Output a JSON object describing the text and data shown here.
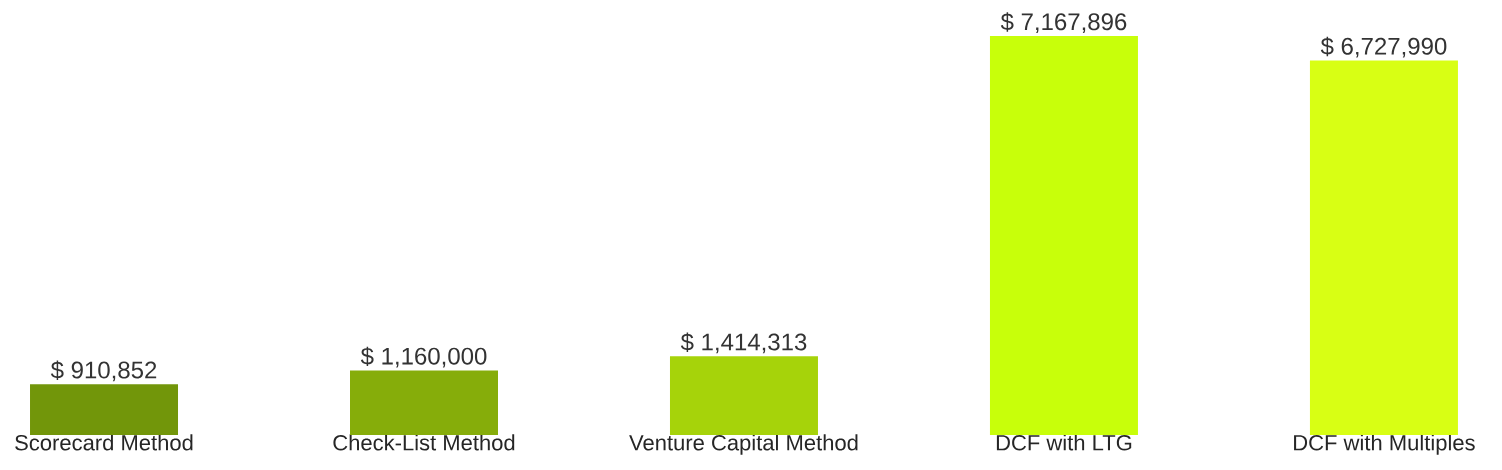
{
  "chart_data": {
    "type": "bar",
    "categories": [
      "Scorecard Method",
      "Check-List Method",
      "Venture Capital Method",
      "DCF with LTG",
      "DCF with Multiples"
    ],
    "values": [
      910852,
      1160000,
      1414313,
      7167896,
      6727990
    ],
    "colors": [
      "#72960a",
      "#86ad0a",
      "#a6d30a",
      "#c8ff0a",
      "#d8ff14"
    ],
    "value_labels": [
      "$ 910,852",
      "$ 1,160,000",
      "$ 1,414,313",
      "$ 7,167,896",
      "$ 6,727,990"
    ]
  }
}
